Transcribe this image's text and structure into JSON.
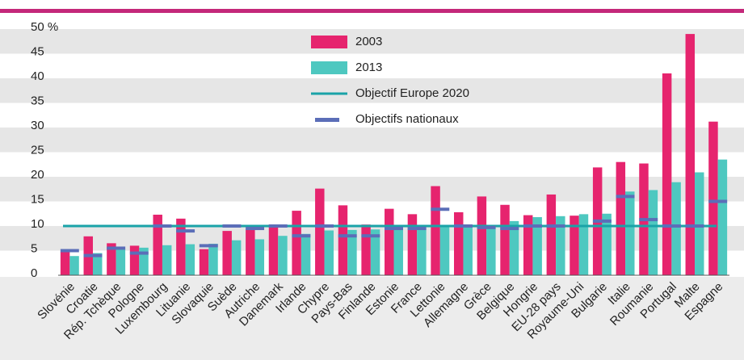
{
  "chart_data": {
    "type": "bar",
    "categories": [
      "Slovénie",
      "Croatie",
      "Rép. Tchèque",
      "Pologne",
      "Luxembourg",
      "Lituanie",
      "Slovaquie",
      "Suède",
      "Autriche",
      "Danemark",
      "Irlande",
      "Chypre",
      "Pays-Bas",
      "Finlande",
      "Estonie",
      "France",
      "Lettonie",
      "Allemagne",
      "Grèce",
      "Belgique",
      "Hongrie",
      "EU-28 pays",
      "Royaume-Uni",
      "Bulgarie",
      "Italie",
      "Roumanie",
      "Portugal",
      "Malte",
      "Espagne"
    ],
    "series": [
      {
        "name": "2003",
        "color": "#e6246e",
        "values": [
          4.8,
          7.9,
          6.5,
          6,
          12.3,
          11.5,
          5.3,
          9,
          9.3,
          10.3,
          13.1,
          17.6,
          14.2,
          10.3,
          13.5,
          12.4,
          18.1,
          12.8,
          16,
          14.3,
          12.2,
          16.4,
          12.1,
          21.9,
          23,
          22.7,
          41,
          49,
          31.2
        ]
      },
      {
        "name": "2013",
        "color": "#4ec8c0",
        "values": [
          3.9,
          4.5,
          5.4,
          5.6,
          6.1,
          6.3,
          6.4,
          7.1,
          7.3,
          8,
          8.4,
          9.1,
          9.2,
          9.3,
          9.7,
          9.7,
          9.8,
          9.9,
          10.1,
          11,
          11.8,
          12,
          12.4,
          12.5,
          17,
          17.3,
          18.9,
          20.9,
          23.5
        ]
      },
      {
        "name": "Objectifs nationaux",
        "color": "#5b6eb8",
        "type": "marker",
        "values": [
          5,
          4,
          5.5,
          4.5,
          10,
          9,
          6,
          10,
          9.5,
          10,
          8,
          10,
          8,
          8,
          9.5,
          9.5,
          13.4,
          10,
          9.7,
          9.5,
          10,
          10,
          null,
          11,
          16,
          11.3,
          10,
          10,
          15
        ]
      }
    ],
    "objective": {
      "name": "Objectif Europe 2020",
      "value": 10,
      "color": "#1aa3a8"
    },
    "ylim": [
      0,
      50
    ],
    "yticks": [
      0,
      5,
      10,
      15,
      20,
      25,
      30,
      35,
      40,
      45,
      {
        "value": 50,
        "label": "50 %"
      }
    ],
    "bands": true
  }
}
